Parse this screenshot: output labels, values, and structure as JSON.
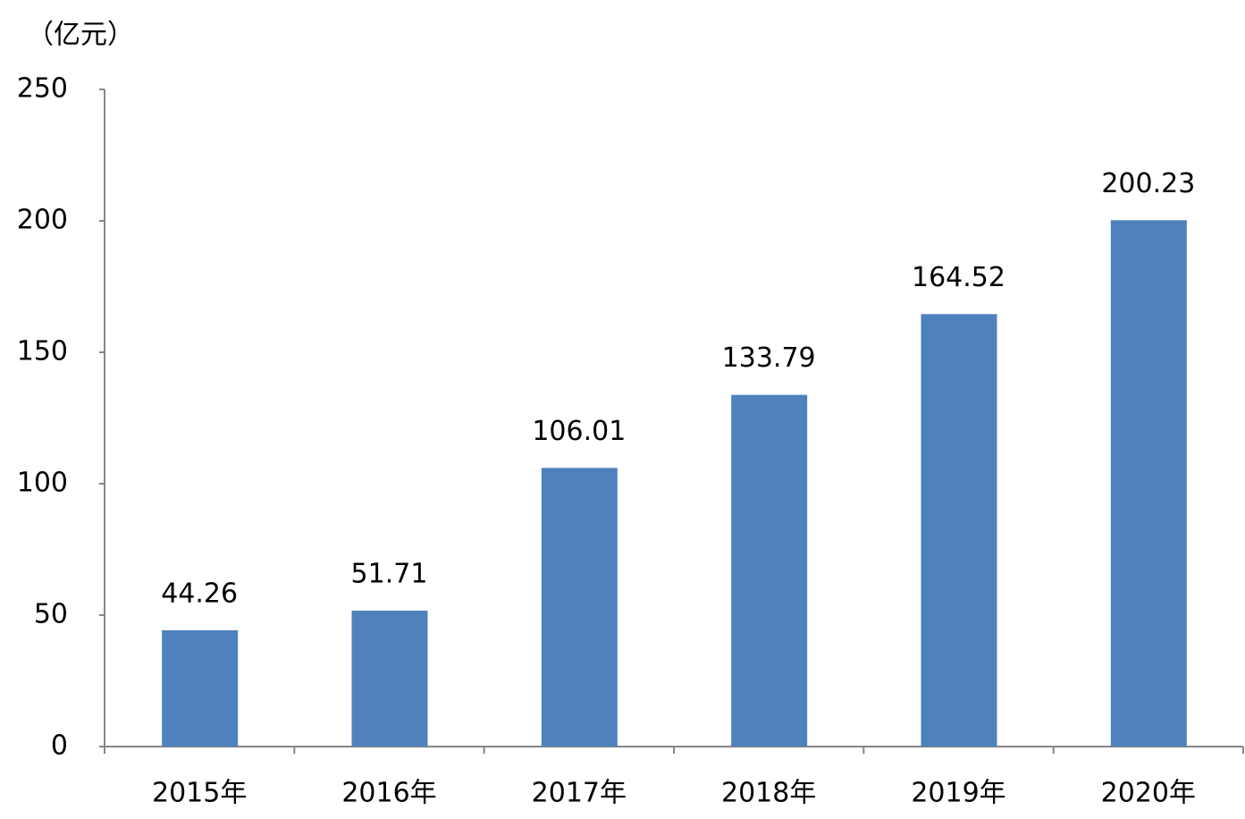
{
  "chart_data": {
    "type": "bar",
    "y_label": "（亿元）",
    "categories": [
      "2015年",
      "2016年",
      "2017年",
      "2018年",
      "2019年",
      "2020年"
    ],
    "values": [
      44.26,
      51.71,
      106.01,
      133.79,
      164.52,
      200.23
    ],
    "color": "#4f81bd",
    "ylim": [
      0,
      250
    ],
    "yticks": [
      0,
      50,
      100,
      150,
      200,
      250
    ],
    "grid": false
  }
}
